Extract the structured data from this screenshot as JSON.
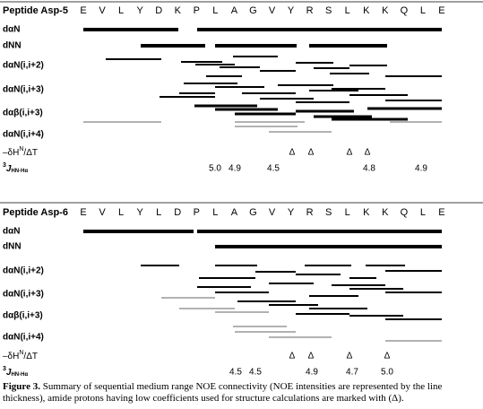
{
  "panels": [
    {
      "title": "Peptide Asp-5",
      "residues": [
        "E",
        "V",
        "L",
        "Y",
        "D",
        "K",
        "P",
        "L",
        "A",
        "G",
        "V",
        "Y",
        "R",
        "S",
        "L",
        "K",
        "K",
        "Q",
        "L",
        "E"
      ],
      "rows": [
        "dαN",
        "dNN",
        "dαN(i,i+2)",
        "dαN(i,i+3)",
        "dαβ(i,i+3)",
        "dαN(i,i+4)"
      ],
      "temperature": {
        "label": {
          "prefix": "–δH",
          "sup": "N",
          "suffix": "/ΔT"
        },
        "marks": [
          "Δ",
          "Δ",
          "Δ",
          "Δ"
        ]
      },
      "coupling": {
        "label": {
          "sup": "3",
          "main": "J",
          "sub": "HN-Hα"
        },
        "values": [
          "5.0",
          "4.9",
          "4.5",
          "4.8",
          "4.9"
        ]
      }
    },
    {
      "title": "Peptide Asp-6",
      "residues": [
        "E",
        "V",
        "L",
        "Y",
        "L",
        "D",
        "P",
        "L",
        "A",
        "G",
        "V",
        "Y",
        "R",
        "S",
        "L",
        "K",
        "K",
        "Q",
        "L",
        "E"
      ],
      "rows": [
        "dαN",
        "dNN",
        "dαN(i,i+2)",
        "dαN(i,i+3)",
        "dαβ(i,i+3)",
        "dαN(i,i+4)"
      ],
      "temperature": {
        "label": {
          "prefix": "–δH",
          "sup": "N",
          "suffix": "/ΔT"
        },
        "marks": [
          "Δ",
          "Δ",
          "Δ",
          "Δ"
        ]
      },
      "coupling": {
        "label": {
          "sup": "3",
          "main": "J",
          "sub": "HN-Hα"
        },
        "values": [
          "4.5",
          "4.5",
          "4.9",
          "4.7",
          "5.0"
        ]
      }
    }
  ],
  "caption": {
    "label": "Figure 3.",
    "text": " Summary of sequential medium range NOE connectivity (NOE intensities are represented by the line thickness), amide protons having low coefficients used for structure calculations are marked with (Δ)."
  }
}
